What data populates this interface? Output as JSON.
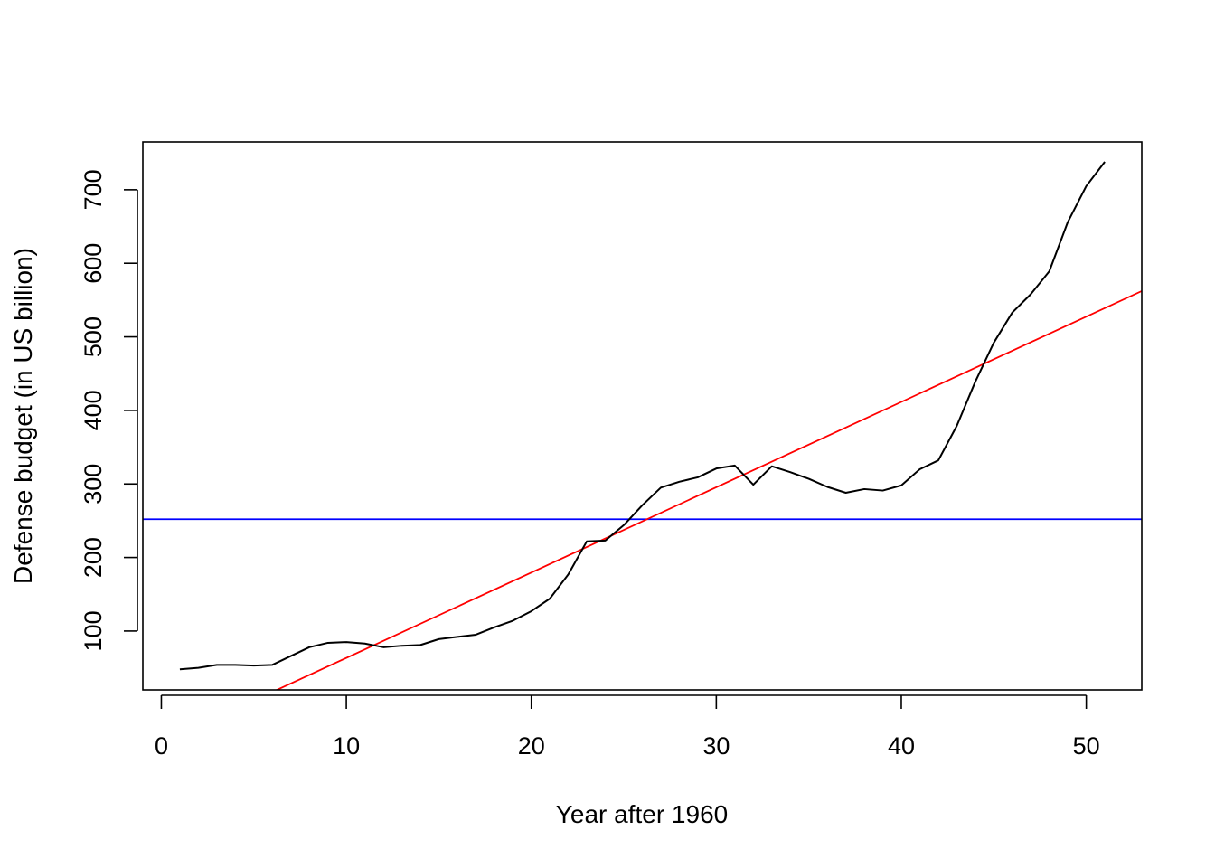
{
  "chart_data": {
    "type": "line",
    "title": "",
    "xlabel": "Year after 1960",
    "ylabel": "Defense budget (in US billion)",
    "xlim": [
      -1,
      53
    ],
    "ylim": [
      20,
      765
    ],
    "xticks": [
      0,
      10,
      20,
      30,
      40,
      50
    ],
    "yticks": [
      100,
      200,
      300,
      400,
      500,
      600,
      700
    ],
    "x": [
      1,
      2,
      3,
      4,
      5,
      6,
      7,
      8,
      9,
      10,
      11,
      12,
      13,
      14,
      15,
      16,
      17,
      18,
      19,
      20,
      21,
      22,
      23,
      24,
      25,
      26,
      27,
      28,
      29,
      30,
      31,
      32,
      33,
      34,
      35,
      36,
      37,
      38,
      39,
      40,
      41,
      42,
      43,
      44,
      45,
      46,
      47,
      48,
      49,
      50,
      51
    ],
    "series": [
      {
        "color": "#000000",
        "values": [
          48,
          50,
          54,
          54,
          53,
          54,
          66,
          78,
          84,
          85,
          83,
          78,
          80,
          81,
          89,
          92,
          95,
          105,
          114,
          127,
          144,
          177,
          222,
          223,
          244,
          271,
          295,
          303,
          309,
          321,
          325,
          299,
          324,
          316,
          307,
          296,
          288,
          293,
          291,
          298,
          320,
          332,
          379,
          439,
          492,
          533,
          558,
          589,
          656,
          705,
          738
        ]
      }
    ],
    "reference_lines": [
      {
        "kind": "horizontal",
        "color": "#0000ff",
        "y": 252
      },
      {
        "kind": "linear_fit",
        "color": "#ff0000",
        "intercept": -52.5,
        "slope": 11.6
      }
    ],
    "grid": false,
    "legend": "none"
  }
}
